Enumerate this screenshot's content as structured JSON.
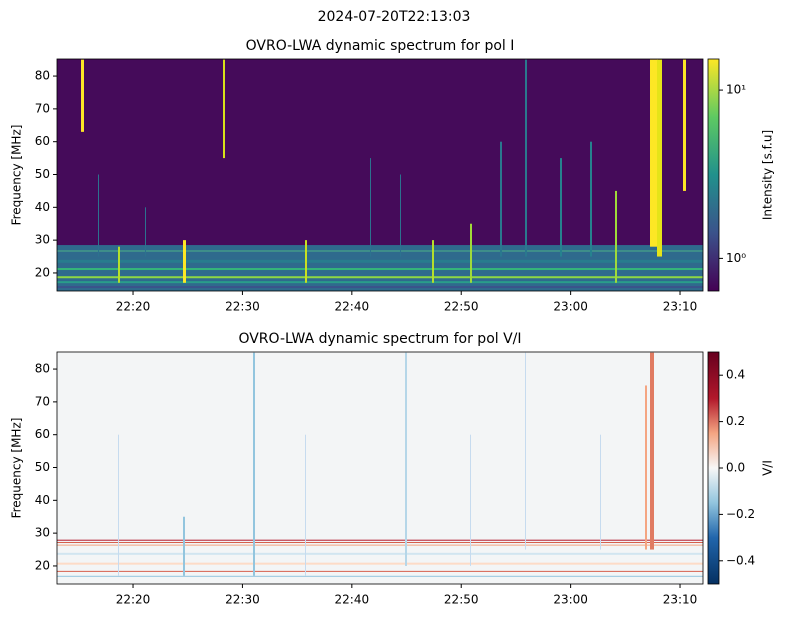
{
  "title": "2024-07-20T22:13:03",
  "chart_data": [
    {
      "type": "heatmap",
      "title": "OVRO-LWA dynamic spectrum for pol I",
      "ylabel": "Frequency [MHz]",
      "xlim": [
        1333.05,
        1392.1
      ],
      "xticks": [
        {
          "value": 1340,
          "label": "22:20"
        },
        {
          "value": 1350,
          "label": "22:30"
        },
        {
          "value": 1360,
          "label": "22:40"
        },
        {
          "value": 1370,
          "label": "22:50"
        },
        {
          "value": 1380,
          "label": "23:00"
        },
        {
          "value": 1390,
          "label": "23:10"
        }
      ],
      "ylim": [
        14.5,
        85.2
      ],
      "yticks": [
        20,
        30,
        40,
        50,
        60,
        70,
        80
      ],
      "colorbar": {
        "label": "Intensity [s.f.u]",
        "log": true,
        "colormap": "viridis",
        "lim": [
          0.64,
          15.3
        ],
        "ticks": [
          {
            "value": 1,
            "label": "10⁰"
          },
          {
            "value": 10,
            "label": "10¹"
          }
        ]
      }
    },
    {
      "type": "heatmap",
      "title": "OVRO-LWA dynamic spectrum for pol V/I",
      "ylabel": "Frequency [MHz]",
      "xlim": [
        1333.05,
        1392.1
      ],
      "xticks": [
        {
          "value": 1340,
          "label": "22:20"
        },
        {
          "value": 1350,
          "label": "22:30"
        },
        {
          "value": 1360,
          "label": "22:40"
        },
        {
          "value": 1370,
          "label": "22:50"
        },
        {
          "value": 1380,
          "label": "23:00"
        },
        {
          "value": 1390,
          "label": "23:10"
        }
      ],
      "ylim": [
        14.5,
        85.2
      ],
      "yticks": [
        20,
        30,
        40,
        50,
        60,
        70,
        80
      ],
      "colorbar": {
        "label": "V/I",
        "log": false,
        "colormap": "RdBu_r",
        "lim": [
          -0.5,
          0.5
        ],
        "ticks": [
          {
            "value": -0.4,
            "label": "−0.4"
          },
          {
            "value": -0.2,
            "label": "−0.2"
          },
          {
            "value": 0,
            "label": "0.0"
          },
          0.2,
          0.4
        ]
      }
    }
  ]
}
